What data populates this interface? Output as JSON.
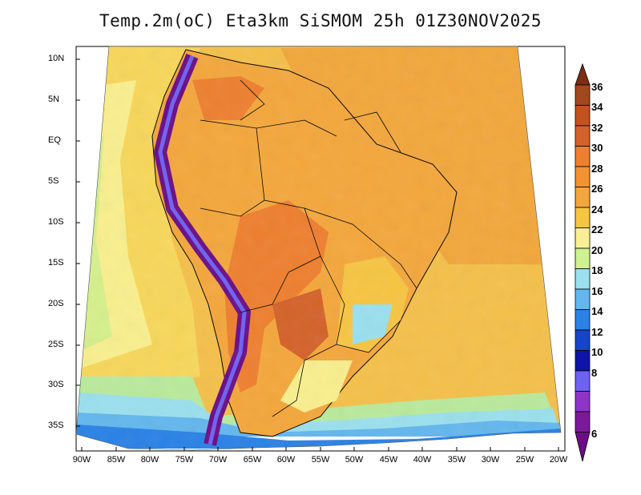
{
  "title": "Temp.2m(oC) Eta3km SiSMOM 25h 01Z30NOV2025",
  "latitude_labels": [
    "10N",
    "5N",
    "EQ",
    "5S",
    "10S",
    "15S",
    "20S",
    "25S",
    "30S",
    "35S"
  ],
  "longitude_labels": [
    "90W",
    "85W",
    "80W",
    "75W",
    "70W",
    "65W",
    "60W",
    "55W",
    "50W",
    "45W",
    "40W",
    "35W",
    "30W",
    "25W",
    "20W"
  ],
  "colorbar": {
    "labels": [
      "36",
      "34",
      "32",
      "30",
      "28",
      "26",
      "24",
      "22",
      "20",
      "18",
      "16",
      "14",
      "12",
      "10",
      "8",
      "6"
    ],
    "colors": [
      "#7a2e12",
      "#a2481c",
      "#d4622a",
      "#ee7f2f",
      "#f4a53c",
      "#f6c542",
      "#f9f096",
      "#cdf28f",
      "#9be0ee",
      "#63b7ee",
      "#2a82e6",
      "#1645c9",
      "#0d14a8",
      "#6d62f2",
      "#8e35c8",
      "#6b0e86"
    ]
  }
}
